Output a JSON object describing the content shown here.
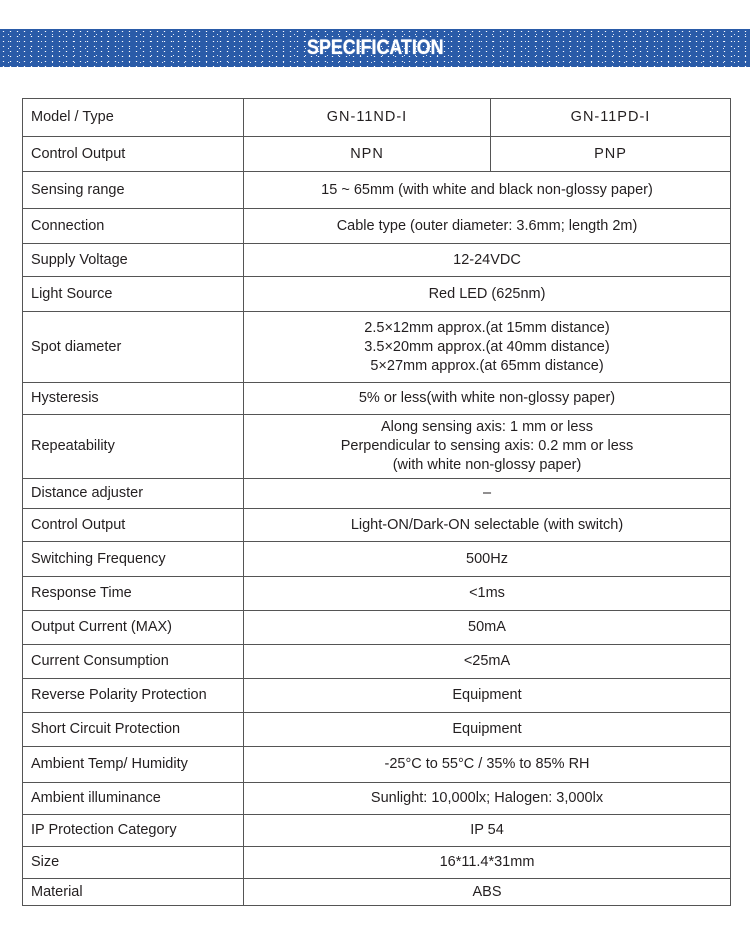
{
  "title": "SPECIFICATION",
  "header": {
    "label": "Model / Type",
    "models": [
      "GN-11ND-I",
      "GN-11PD-I"
    ]
  },
  "control_output_split": {
    "label": "Control Output",
    "values": [
      "NPN",
      "PNP"
    ]
  },
  "rows": [
    {
      "label": "Sensing range",
      "lines": [
        "15 ~ 65mm (with white and black non-glossy paper)"
      ]
    },
    {
      "label": "Connection",
      "lines": [
        "Cable type (outer diameter: 3.6mm; length 2m)"
      ]
    },
    {
      "label": "Supply Voltage",
      "lines": [
        "12-24VDC"
      ]
    },
    {
      "label": "Light Source",
      "lines": [
        "Red LED (625nm)"
      ]
    },
    {
      "label": "Spot diameter",
      "lines": [
        "2.5×12mm approx.(at 15mm distance)",
        "3.5×20mm approx.(at 40mm distance)",
        "5×27mm approx.(at 65mm distance)"
      ]
    },
    {
      "label": "Hysteresis",
      "lines": [
        "5% or less(with white non-glossy paper)"
      ]
    },
    {
      "label": "Repeatability",
      "lines": [
        "Along sensing axis: 1 mm or less",
        "Perpendicular to sensing axis: 0.2 mm or less",
        "(with white non-glossy paper)"
      ]
    },
    {
      "label": "Distance adjuster",
      "lines": [
        "–"
      ]
    },
    {
      "label": "Control Output",
      "lines": [
        "Light-ON/Dark-ON selectable (with switch)"
      ]
    },
    {
      "label": "Switching Frequency",
      "lines": [
        "500Hz"
      ]
    },
    {
      "label": "Response Time",
      "lines": [
        "<1ms"
      ]
    },
    {
      "label": "Output Current (MAX)",
      "lines": [
        "50mA"
      ]
    },
    {
      "label": "Current Consumption",
      "lines": [
        "<25mA"
      ]
    },
    {
      "label": "Reverse Polarity Protection",
      "lines": [
        "Equipment"
      ]
    },
    {
      "label": "Short Circuit Protection",
      "lines": [
        "Equipment"
      ]
    },
    {
      "label": "Ambient Temp/ Humidity",
      "lines": [
        "-25°C to 55°C / 35% to 85% RH"
      ]
    },
    {
      "label": "Ambient illuminance",
      "lines": [
        "Sunlight: 10,000lx; Halogen: 3,000lx"
      ]
    },
    {
      "label": "IP Protection Category",
      "lines": [
        "IP 54"
      ]
    },
    {
      "label": "Size",
      "lines": [
        "16*11.4*31mm"
      ]
    },
    {
      "label": "Material",
      "lines": [
        "ABS"
      ]
    }
  ]
}
